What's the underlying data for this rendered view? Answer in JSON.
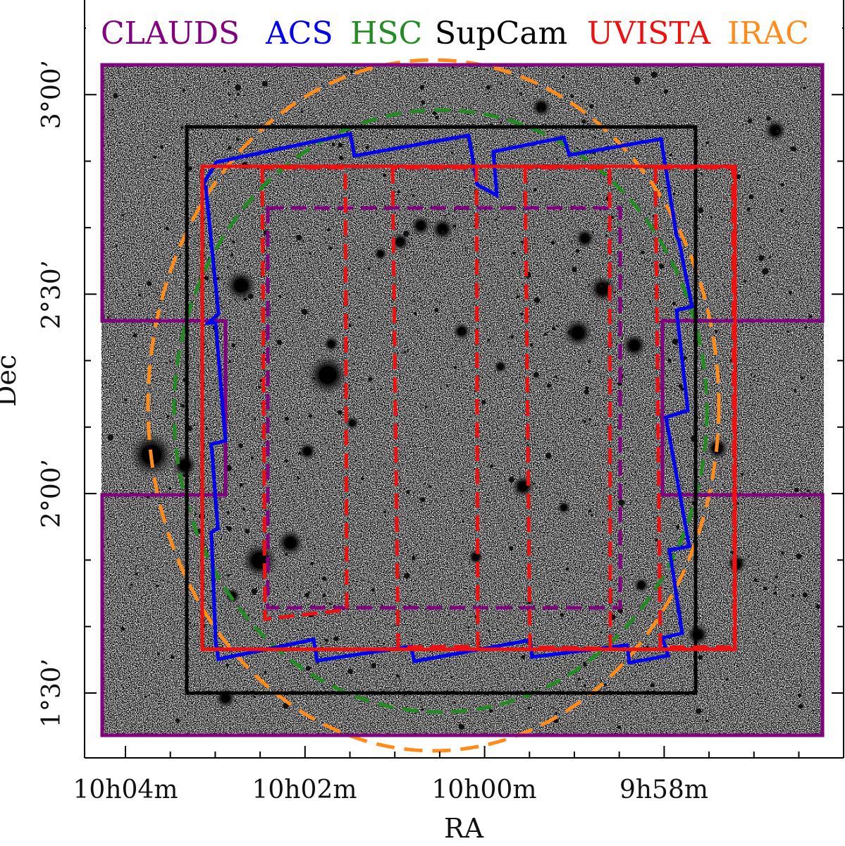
{
  "chart_data": {
    "type": "sky-map",
    "xlabel": "RA",
    "ylabel": "Dec",
    "x_ticks": [
      "10h04m",
      "10h02m",
      "10h00m",
      "9h58m"
    ],
    "y_ticks": [
      "1°30’",
      "2°00’",
      "2°30’",
      "3°00’"
    ],
    "legend": [
      {
        "name": "CLAUDS",
        "color": "#800080"
      },
      {
        "name": "ACS",
        "color": "#0000ee"
      },
      {
        "name": "HSC",
        "color": "#228b22"
      },
      {
        "name": "SupCam",
        "color": "#000000"
      },
      {
        "name": "UVISTA",
        "color": "#ee1111"
      },
      {
        "name": "IRAC",
        "color": "#ff8c1a"
      }
    ]
  }
}
